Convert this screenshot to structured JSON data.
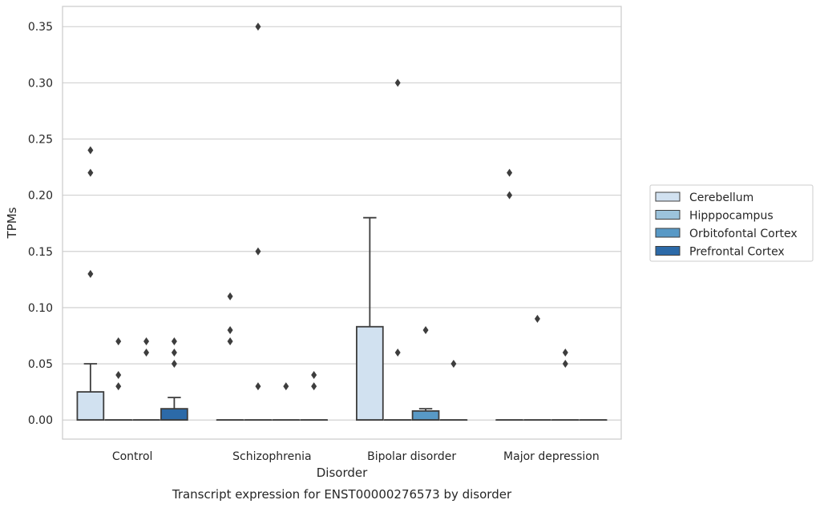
{
  "chart_data": {
    "type": "boxplot",
    "caption": "Transcript expression for ENST00000276573 by disorder",
    "xlabel": "Disorder",
    "ylabel": "TPMs",
    "ylim": [
      -0.017,
      0.368
    ],
    "yticks": [
      0.0,
      0.05,
      0.1,
      0.15,
      0.2,
      0.25,
      0.3,
      0.35
    ],
    "ytick_labels": [
      "0.00",
      "0.05",
      "0.10",
      "0.15",
      "0.20",
      "0.25",
      "0.30",
      "0.35"
    ],
    "grid": true,
    "legend_position": "right",
    "categories": [
      "Control",
      "Schizophrenia",
      "Bipolar disorder",
      "Major depression"
    ],
    "series": [
      {
        "name": "Cerebellum",
        "color": "#d1e1f0",
        "boxes": [
          {
            "q1": 0.0,
            "median": 0.0,
            "q3": 0.025,
            "whisker_low": 0.0,
            "whisker_high": 0.05,
            "outliers": [
              0.13,
              0.22,
              0.24
            ]
          },
          {
            "q1": 0.0,
            "median": 0.0,
            "q3": 0.0,
            "whisker_low": 0.0,
            "whisker_high": 0.0,
            "outliers": [
              0.07,
              0.08,
              0.11
            ]
          },
          {
            "q1": 0.0,
            "median": 0.0,
            "q3": 0.083,
            "whisker_low": 0.0,
            "whisker_high": 0.18,
            "outliers": []
          },
          {
            "q1": 0.0,
            "median": 0.0,
            "q3": 0.0,
            "whisker_low": 0.0,
            "whisker_high": 0.0,
            "outliers": [
              0.2,
              0.22
            ]
          }
        ]
      },
      {
        "name": "Hipppocampus",
        "color": "#9cc3dc",
        "boxes": [
          {
            "q1": 0.0,
            "median": 0.0,
            "q3": 0.0,
            "whisker_low": 0.0,
            "whisker_high": 0.0,
            "outliers": [
              0.03,
              0.04,
              0.07
            ]
          },
          {
            "q1": 0.0,
            "median": 0.0,
            "q3": 0.0,
            "whisker_low": 0.0,
            "whisker_high": 0.0,
            "outliers": [
              0.03,
              0.15,
              0.35
            ]
          },
          {
            "q1": 0.0,
            "median": 0.0,
            "q3": 0.0,
            "whisker_low": 0.0,
            "whisker_high": 0.0,
            "outliers": [
              0.06,
              0.3
            ]
          },
          {
            "q1": 0.0,
            "median": 0.0,
            "q3": 0.0,
            "whisker_low": 0.0,
            "whisker_high": 0.0,
            "outliers": [
              0.09
            ]
          }
        ]
      },
      {
        "name": "Orbitofontal Cortex",
        "color": "#5899c6",
        "boxes": [
          {
            "q1": 0.0,
            "median": 0.0,
            "q3": 0.0,
            "whisker_low": 0.0,
            "whisker_high": 0.0,
            "outliers": [
              0.06,
              0.07
            ]
          },
          {
            "q1": 0.0,
            "median": 0.0,
            "q3": 0.0,
            "whisker_low": 0.0,
            "whisker_high": 0.0,
            "outliers": [
              0.03
            ]
          },
          {
            "q1": 0.0,
            "median": 0.0,
            "q3": 0.008,
            "whisker_low": 0.0,
            "whisker_high": 0.01,
            "outliers": [
              0.08
            ]
          },
          {
            "q1": 0.0,
            "median": 0.0,
            "q3": 0.0,
            "whisker_low": 0.0,
            "whisker_high": 0.0,
            "outliers": [
              0.05,
              0.06
            ]
          }
        ]
      },
      {
        "name": "Prefrontal Cortex",
        "color": "#2c6aa8",
        "boxes": [
          {
            "q1": 0.0,
            "median": 0.0,
            "q3": 0.01,
            "whisker_low": 0.0,
            "whisker_high": 0.02,
            "outliers": [
              0.05,
              0.06,
              0.07
            ]
          },
          {
            "q1": 0.0,
            "median": 0.0,
            "q3": 0.0,
            "whisker_low": 0.0,
            "whisker_high": 0.0,
            "outliers": [
              0.03,
              0.04
            ]
          },
          {
            "q1": 0.0,
            "median": 0.0,
            "q3": 0.0,
            "whisker_low": 0.0,
            "whisker_high": 0.0,
            "outliers": [
              0.05
            ]
          },
          {
            "q1": 0.0,
            "median": 0.0,
            "q3": 0.0,
            "whisker_low": 0.0,
            "whisker_high": 0.0,
            "outliers": []
          }
        ]
      }
    ]
  }
}
